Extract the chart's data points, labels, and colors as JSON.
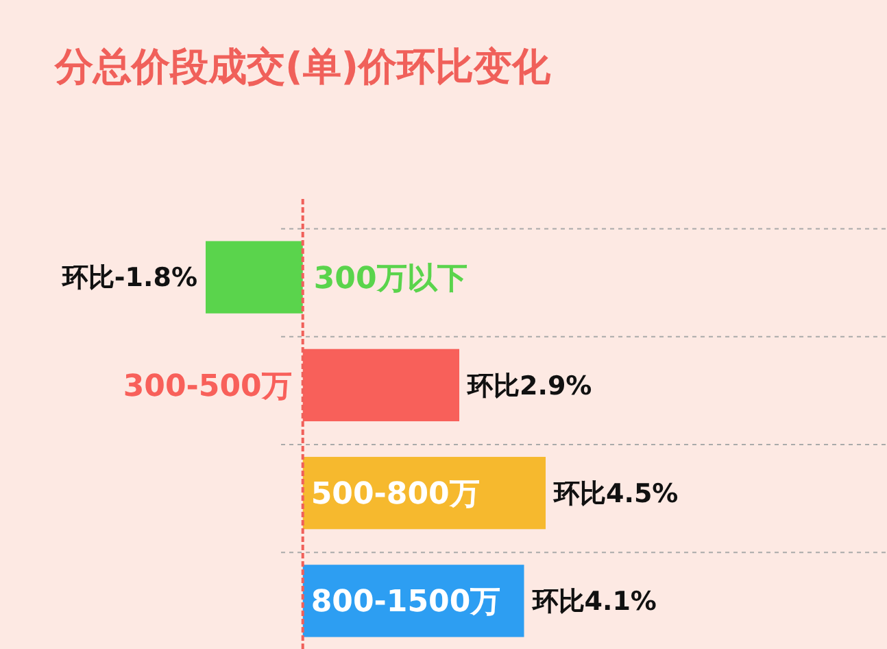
{
  "chart_data": {
    "type": "bar",
    "orientation": "horizontal",
    "title": "分总价段成交(单)价环比变化",
    "categories": [
      "300万以下",
      "300-500万",
      "500-800万",
      "800-1500万"
    ],
    "values": [
      -1.8,
      2.9,
      4.5,
      4.1
    ],
    "colors": [
      "#5ad44c",
      "#f8605a",
      "#f6b92e",
      "#2d9ef2"
    ],
    "value_labels": [
      "环比-1.8%",
      "环比2.9%",
      "环比4.5%",
      "环比4.1%"
    ],
    "ref_lines": [
      {
        "axis": "x",
        "value": 0,
        "color": "#f0605a",
        "line_style": "dashed"
      }
    ],
    "grid": "y"
  }
}
